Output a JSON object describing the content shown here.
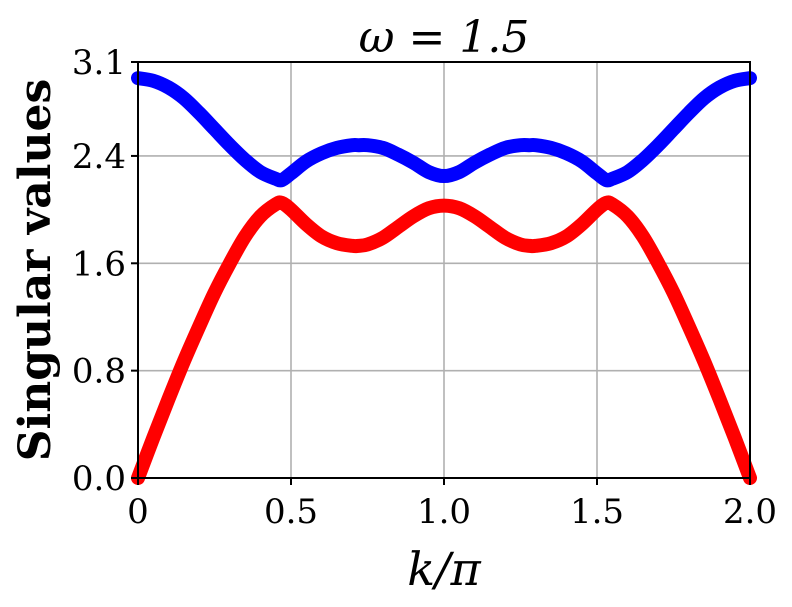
{
  "chart_data": {
    "type": "line",
    "title": "ω = 1.5",
    "xlabel": "k/π",
    "ylabel": "Singular values",
    "xlim": [
      0,
      2
    ],
    "ylim": [
      0,
      3.1
    ],
    "xticks": [
      0,
      0.5,
      1.0,
      1.5,
      2.0
    ],
    "xtick_labels": [
      "0",
      "0.5",
      "1.0",
      "1.5",
      "2.0"
    ],
    "yticks": [
      0,
      0.8,
      1.6,
      2.4,
      3.1
    ],
    "ytick_labels": [
      "0.0",
      "0.8",
      "1.6",
      "2.4",
      "3.1"
    ],
    "grid": true,
    "legend": "none",
    "series": [
      {
        "color": "#0000ff",
        "x": [
          0,
          0.05,
          0.1,
          0.15,
          0.2,
          0.25,
          0.3,
          0.35,
          0.4,
          0.45,
          0.47,
          0.5,
          0.55,
          0.6,
          0.65,
          0.7,
          0.72,
          0.75,
          0.8,
          0.85,
          0.9,
          0.95,
          1.0,
          1.05,
          1.1,
          1.15,
          1.2,
          1.25,
          1.28,
          1.3,
          1.35,
          1.4,
          1.45,
          1.5,
          1.53,
          1.55,
          1.6,
          1.65,
          1.7,
          1.75,
          1.8,
          1.85,
          1.9,
          1.95,
          2.0
        ],
        "y": [
          2.98,
          2.96,
          2.91,
          2.83,
          2.72,
          2.6,
          2.48,
          2.37,
          2.28,
          2.23,
          2.22,
          2.27,
          2.36,
          2.42,
          2.46,
          2.48,
          2.48,
          2.48,
          2.46,
          2.41,
          2.35,
          2.28,
          2.25,
          2.28,
          2.35,
          2.41,
          2.46,
          2.48,
          2.48,
          2.48,
          2.46,
          2.42,
          2.36,
          2.27,
          2.22,
          2.23,
          2.28,
          2.37,
          2.48,
          2.6,
          2.72,
          2.83,
          2.91,
          2.96,
          2.98
        ]
      },
      {
        "color": "#ff0000",
        "x": [
          0,
          0.05,
          0.1,
          0.15,
          0.2,
          0.25,
          0.3,
          0.35,
          0.4,
          0.45,
          0.47,
          0.5,
          0.55,
          0.6,
          0.65,
          0.7,
          0.72,
          0.75,
          0.8,
          0.85,
          0.9,
          0.95,
          1.0,
          1.05,
          1.1,
          1.15,
          1.2,
          1.25,
          1.28,
          1.3,
          1.35,
          1.4,
          1.45,
          1.5,
          1.53,
          1.55,
          1.6,
          1.65,
          1.7,
          1.75,
          1.8,
          1.85,
          1.9,
          1.95,
          2.0
        ],
        "y": [
          0.0,
          0.3,
          0.59,
          0.87,
          1.13,
          1.38,
          1.6,
          1.8,
          1.95,
          2.04,
          2.05,
          2.0,
          1.89,
          1.8,
          1.75,
          1.73,
          1.73,
          1.74,
          1.79,
          1.87,
          1.95,
          2.01,
          2.03,
          2.01,
          1.95,
          1.87,
          1.79,
          1.74,
          1.73,
          1.73,
          1.75,
          1.8,
          1.89,
          2.0,
          2.05,
          2.04,
          1.95,
          1.8,
          1.6,
          1.38,
          1.13,
          0.87,
          0.59,
          0.3,
          0.0
        ]
      }
    ]
  }
}
